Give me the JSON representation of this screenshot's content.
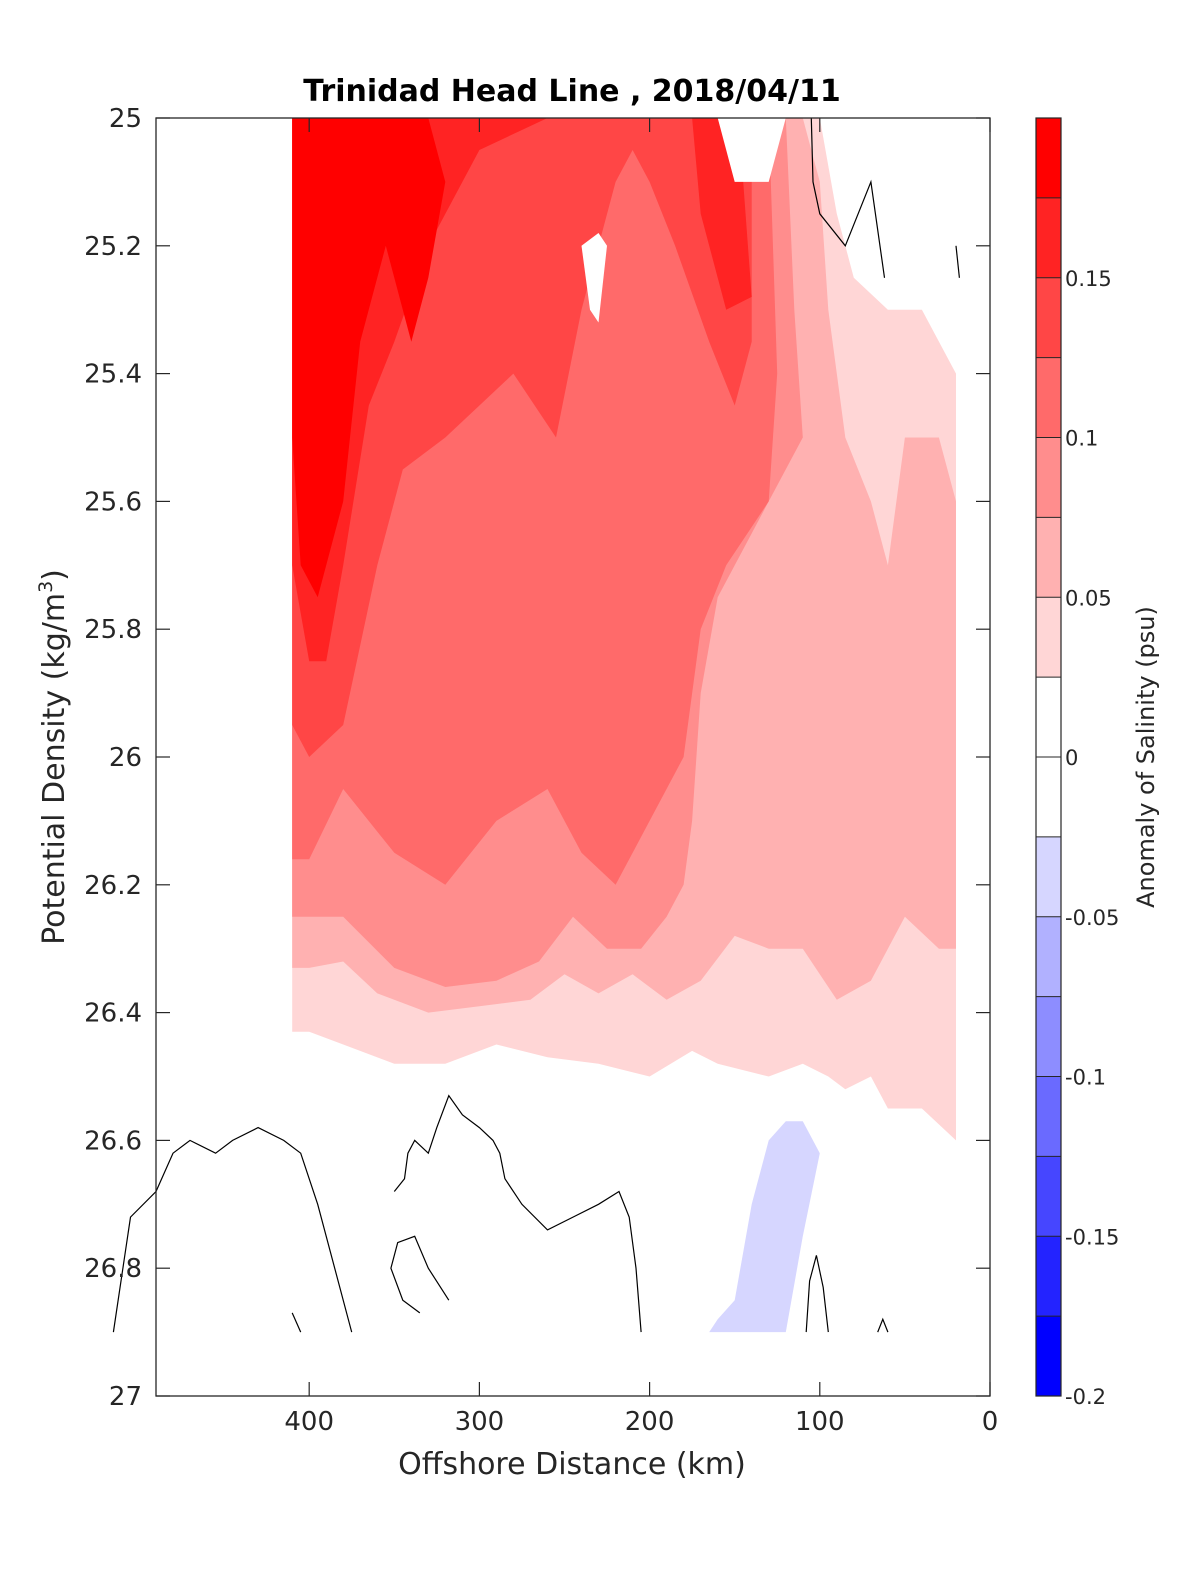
{
  "chart_data": {
    "type": "filled-contour",
    "title": "Trinidad Head Line , 2018/04/11",
    "xlabel": "Offshore Distance (km)",
    "ylabel_main": "Potential Density (kg/m",
    "ylabel_sup": "3",
    "ylabel_close": ")",
    "colorbar_label": "Anomaly of Salinity (psu)",
    "x_range": [
      490,
      0
    ],
    "x_ticks": [
      400,
      300,
      200,
      100,
      0
    ],
    "x_tick_labels": [
      "400",
      "300",
      "200",
      "100",
      "0"
    ],
    "y_range": [
      25,
      27
    ],
    "y_ticks": [
      25,
      25.2,
      25.4,
      25.6,
      25.8,
      26,
      26.2,
      26.4,
      26.6,
      26.8,
      27
    ],
    "y_tick_labels": [
      "25",
      "25.2",
      "25.4",
      "25.6",
      "25.8",
      "26",
      "26.2",
      "26.4",
      "26.6",
      "26.8",
      "27"
    ],
    "colorbar_range": [
      -0.2,
      0.2
    ],
    "colorbar_ticks": [
      0.15,
      0.1,
      0.05,
      0,
      -0.05,
      -0.1,
      -0.15,
      -0.2
    ],
    "colorbar_tick_labels": [
      "0.15",
      "0.1",
      "0.05",
      "0",
      "-0.05",
      "-0.1",
      "-0.15",
      "-0.2"
    ],
    "levels": [
      0.175,
      0.15,
      0.125,
      0.1,
      0.075,
      0.05,
      0.025,
      0,
      -0.025,
      -0.05,
      -0.075,
      -0.1,
      -0.125,
      -0.15,
      -0.175,
      -0.2
    ],
    "colorbar_colors": [
      "#ff0000",
      "#ff2323",
      "#ff4646",
      "#ff6a6a",
      "#ff8d8d",
      "#ffb1b1",
      "#ffd6d6",
      "#ffffff",
      "#ffffff",
      "#d6d6ff",
      "#b1b1ff",
      "#8d8dff",
      "#6a6aff",
      "#4646ff",
      "#2323ff",
      "#0000ff"
    ],
    "data_x_extent": [
      410,
      20
    ],
    "data_y_extent": [
      25,
      26.9
    ],
    "regions": [
      {
        "level": 0.025,
        "color": "#ffd6d6",
        "points": [
          [
            410,
            25
          ],
          [
            140,
            25
          ],
          [
            100,
            25
          ],
          [
            90,
            25.15
          ],
          [
            80,
            25.25
          ],
          [
            60,
            25.3
          ],
          [
            40,
            25.3
          ],
          [
            20,
            25.4
          ],
          [
            20,
            26.6
          ],
          [
            40,
            26.55
          ],
          [
            50,
            26.55
          ],
          [
            60,
            26.55
          ],
          [
            70,
            26.5
          ],
          [
            85,
            26.52
          ],
          [
            95,
            26.5
          ],
          [
            110,
            26.48
          ],
          [
            130,
            26.5
          ],
          [
            160,
            26.48
          ],
          [
            175,
            26.46
          ],
          [
            200,
            26.5
          ],
          [
            230,
            26.48
          ],
          [
            260,
            26.47
          ],
          [
            290,
            26.45
          ],
          [
            320,
            26.48
          ],
          [
            350,
            26.48
          ],
          [
            380,
            26.45
          ],
          [
            400,
            26.43
          ],
          [
            410,
            26.43
          ]
        ]
      },
      {
        "level": 0.05,
        "color": "#ffb1b1",
        "points": [
          [
            410,
            25
          ],
          [
            110,
            25
          ],
          [
            100,
            25.1
          ],
          [
            95,
            25.3
          ],
          [
            85,
            25.5
          ],
          [
            70,
            25.6
          ],
          [
            60,
            25.7
          ],
          [
            50,
            25.5
          ],
          [
            30,
            25.5
          ],
          [
            20,
            25.6
          ],
          [
            20,
            26.3
          ],
          [
            30,
            26.3
          ],
          [
            50,
            26.25
          ],
          [
            70,
            26.35
          ],
          [
            90,
            26.38
          ],
          [
            110,
            26.3
          ],
          [
            130,
            26.3
          ],
          [
            150,
            26.28
          ],
          [
            170,
            26.35
          ],
          [
            190,
            26.38
          ],
          [
            210,
            26.34
          ],
          [
            230,
            26.37
          ],
          [
            250,
            26.34
          ],
          [
            270,
            26.38
          ],
          [
            300,
            26.39
          ],
          [
            330,
            26.4
          ],
          [
            360,
            26.37
          ],
          [
            380,
            26.32
          ],
          [
            400,
            26.33
          ],
          [
            410,
            26.33
          ]
        ]
      },
      {
        "level": 0.075,
        "color": "#ff8d8d",
        "points": [
          [
            410,
            25
          ],
          [
            120,
            25
          ],
          [
            115,
            25.3
          ],
          [
            110,
            25.5
          ],
          [
            130,
            25.6
          ],
          [
            160,
            25.75
          ],
          [
            170,
            25.9
          ],
          [
            175,
            26.1
          ],
          [
            180,
            26.2
          ],
          [
            190,
            26.25
          ],
          [
            205,
            26.3
          ],
          [
            225,
            26.3
          ],
          [
            245,
            26.25
          ],
          [
            265,
            26.32
          ],
          [
            290,
            26.35
          ],
          [
            320,
            26.36
          ],
          [
            350,
            26.33
          ],
          [
            380,
            26.25
          ],
          [
            400,
            26.25
          ],
          [
            410,
            26.25
          ]
        ]
      },
      {
        "level": 0.1,
        "color": "#ff6a6a",
        "points": [
          [
            410,
            25
          ],
          [
            130,
            25
          ],
          [
            125,
            25.4
          ],
          [
            130,
            25.6
          ],
          [
            155,
            25.7
          ],
          [
            170,
            25.8
          ],
          [
            180,
            26.0
          ],
          [
            200,
            26.1
          ],
          [
            220,
            26.2
          ],
          [
            240,
            26.15
          ],
          [
            260,
            26.05
          ],
          [
            290,
            26.1
          ],
          [
            320,
            26.2
          ],
          [
            350,
            26.15
          ],
          [
            380,
            26.05
          ],
          [
            400,
            26.16
          ],
          [
            410,
            26.16
          ]
        ]
      },
      {
        "level": 0.125,
        "color": "#ff4646",
        "points": [
          [
            410,
            25
          ],
          [
            140,
            25
          ],
          [
            140,
            25.35
          ],
          [
            150,
            25.45
          ],
          [
            165,
            25.35
          ],
          [
            185,
            25.2
          ],
          [
            200,
            25.1
          ],
          [
            210,
            25.05
          ],
          [
            220,
            25.1
          ],
          [
            240,
            25.3
          ],
          [
            255,
            25.5
          ],
          [
            280,
            25.4
          ],
          [
            320,
            25.5
          ],
          [
            345,
            25.55
          ],
          [
            360,
            25.7
          ],
          [
            380,
            25.95
          ],
          [
            400,
            26.0
          ],
          [
            410,
            25.95
          ]
        ]
      },
      {
        "level": 0.15,
        "color": "#ff2323",
        "points": [
          [
            410,
            25
          ],
          [
            175,
            25
          ],
          [
            170,
            25.15
          ],
          [
            155,
            25.3
          ],
          [
            140,
            25.28
          ],
          [
            145,
            25.1
          ],
          [
            155,
            25.0
          ],
          [
            190,
            25.0
          ],
          [
            215,
            25.0
          ],
          [
            230,
            25.0
          ],
          [
            260,
            25.0
          ],
          [
            300,
            25.05
          ],
          [
            330,
            25.2
          ],
          [
            350,
            25.35
          ],
          [
            365,
            25.45
          ],
          [
            380,
            25.7
          ],
          [
            390,
            25.85
          ],
          [
            400,
            25.85
          ],
          [
            410,
            25.7
          ]
        ]
      },
      {
        "level": 0.175,
        "color": "#ff0000",
        "points": [
          [
            410,
            25
          ],
          [
            390,
            25
          ],
          [
            360,
            25
          ],
          [
            330,
            25
          ],
          [
            320,
            25.1
          ],
          [
            330,
            25.25
          ],
          [
            340,
            25.35
          ],
          [
            355,
            25.2
          ],
          [
            370,
            25.35
          ],
          [
            380,
            25.6
          ],
          [
            395,
            25.75
          ],
          [
            405,
            25.7
          ],
          [
            410,
            25.5
          ]
        ]
      },
      {
        "level": -0.05,
        "color": "#d6d6ff",
        "points": [
          [
            165,
            26.9
          ],
          [
            120,
            26.9
          ],
          [
            110,
            26.75
          ],
          [
            100,
            26.62
          ],
          [
            110,
            26.57
          ],
          [
            120,
            26.57
          ],
          [
            130,
            26.6
          ],
          [
            140,
            26.7
          ],
          [
            150,
            26.85
          ],
          [
            160,
            26.88
          ]
        ]
      }
    ],
    "white_patches": [
      {
        "label": "near-surface notch",
        "points": [
          [
            160,
            25
          ],
          [
            120,
            25
          ],
          [
            130,
            25.1
          ],
          [
            150,
            25.1
          ]
        ]
      },
      {
        "label": "core minimum",
        "points": [
          [
            240,
            25.2
          ],
          [
            235,
            25.3
          ],
          [
            230,
            25.32
          ],
          [
            225,
            25.2
          ],
          [
            230,
            25.18
          ]
        ]
      }
    ],
    "contour_lines": [
      {
        "level": 0,
        "points": [
          [
            375,
            26.9
          ],
          [
            395,
            26.7
          ],
          [
            405,
            26.62
          ],
          [
            415,
            26.6
          ],
          [
            430,
            26.58
          ],
          [
            445,
            26.6
          ],
          [
            455,
            26.62
          ],
          [
            470,
            26.6
          ],
          [
            480,
            26.62
          ],
          [
            490,
            26.68
          ],
          [
            505,
            26.72
          ],
          [
            515,
            26.9
          ]
        ]
      },
      {
        "level": 0,
        "points": [
          [
            318,
            26.85
          ],
          [
            330,
            26.8
          ],
          [
            338,
            26.75
          ],
          [
            348,
            26.76
          ],
          [
            352,
            26.8
          ],
          [
            345,
            26.85
          ],
          [
            335,
            26.87
          ]
        ]
      },
      {
        "level": 0,
        "points": [
          [
            205,
            26.9
          ],
          [
            208,
            26.8
          ],
          [
            212,
            26.72
          ],
          [
            218,
            26.68
          ],
          [
            230,
            26.7
          ],
          [
            245,
            26.72
          ],
          [
            260,
            26.74
          ],
          [
            275,
            26.7
          ],
          [
            285,
            26.66
          ],
          [
            288,
            26.62
          ],
          [
            292,
            26.6
          ],
          [
            300,
            26.58
          ],
          [
            310,
            26.56
          ],
          [
            318,
            26.53
          ],
          [
            325,
            26.58
          ],
          [
            330,
            26.62
          ],
          [
            338,
            26.6
          ],
          [
            342,
            26.62
          ],
          [
            344,
            26.66
          ],
          [
            350,
            26.68
          ]
        ]
      },
      {
        "level": 0,
        "points": [
          [
            95,
            26.9
          ],
          [
            98,
            26.83
          ],
          [
            102,
            26.78
          ],
          [
            106,
            26.82
          ],
          [
            108,
            26.9
          ]
        ]
      },
      {
        "level": 0,
        "points": [
          [
            60,
            26.9
          ],
          [
            63,
            26.88
          ],
          [
            66,
            26.9
          ]
        ]
      },
      {
        "level": 0,
        "points": [
          [
            410,
            26.87
          ],
          [
            405,
            26.9
          ]
        ]
      },
      {
        "level": 0,
        "points": [
          [
            105,
            25.0
          ],
          [
            104,
            25.1
          ],
          [
            100,
            25.15
          ],
          [
            85,
            25.2
          ],
          [
            70,
            25.1
          ],
          [
            62,
            25.25
          ]
        ]
      },
      {
        "level": 0,
        "points": [
          [
            20,
            25.2
          ],
          [
            18,
            25.25
          ]
        ]
      }
    ]
  }
}
